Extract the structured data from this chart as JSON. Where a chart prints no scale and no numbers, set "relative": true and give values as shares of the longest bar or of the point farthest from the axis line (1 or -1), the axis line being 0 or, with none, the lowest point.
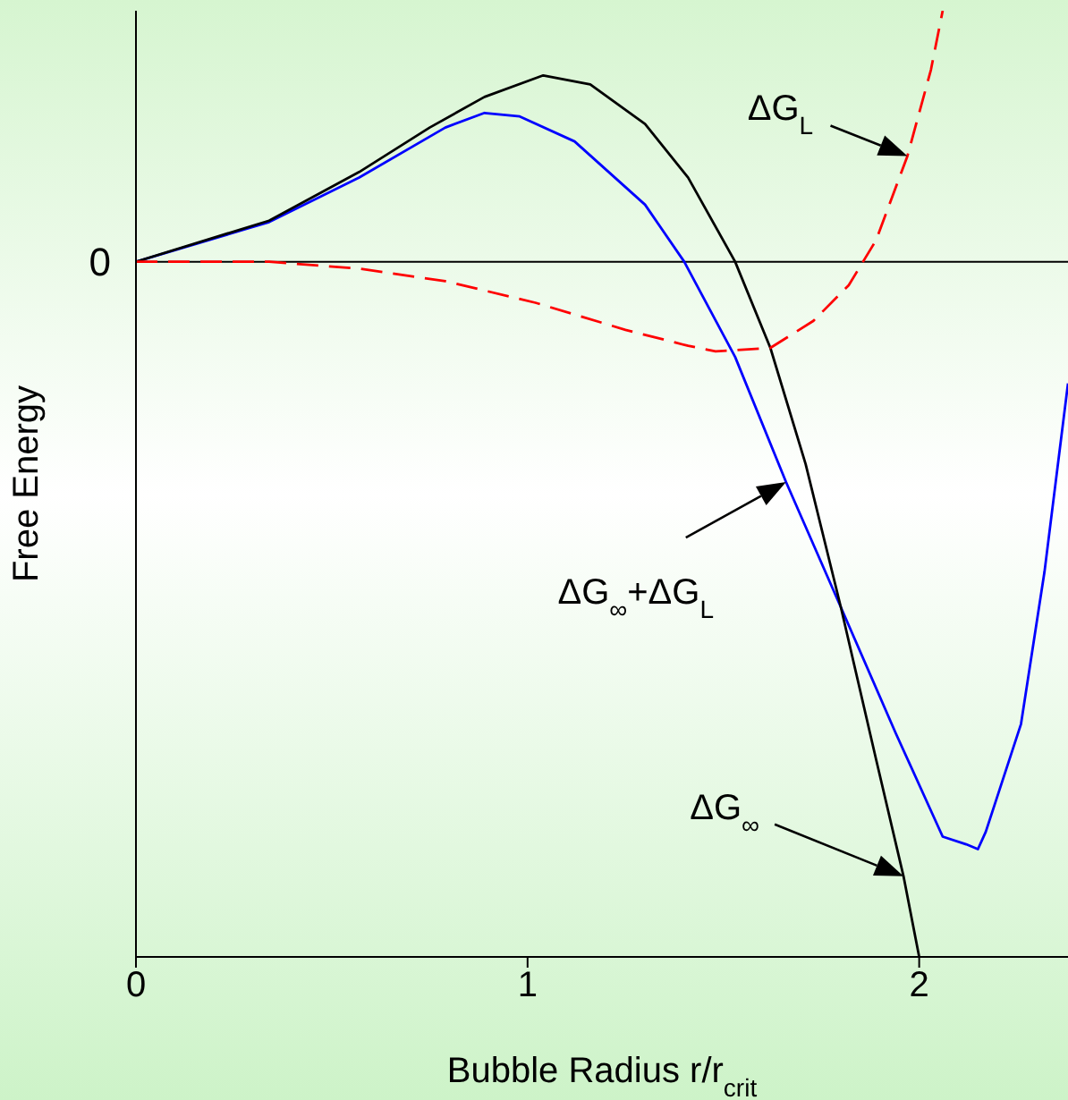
{
  "chart_data": {
    "type": "line",
    "xlabel": "Bubble Radius r/r$_{crit}$",
    "ylabel": "Free Energy",
    "relative": true,
    "xlim": [
      0,
      2.38
    ],
    "xticks": [
      0,
      1,
      2
    ],
    "marker": "none",
    "series": [
      {
        "color": "#0000ff",
        "line_style": "solid",
        "x": [
          0,
          0.34,
          0.57,
          0.79,
          0.89,
          0.98,
          1.12,
          1.3,
          1.4,
          1.53,
          1.66,
          1.8,
          1.94,
          2.06,
          2.12,
          2.15,
          2.17,
          2.26,
          2.32,
          2.38
        ],
        "values": [
          0,
          0.057,
          0.121,
          0.193,
          0.214,
          0.209,
          0.173,
          0.082,
          0,
          -0.137,
          -0.317,
          -0.497,
          -0.678,
          -0.827,
          -0.838,
          -0.845,
          -0.82,
          -0.665,
          -0.446,
          -0.175
        ]
      },
      {
        "color": "#000000",
        "line_style": "solid",
        "x": [
          0,
          0.34,
          0.57,
          0.75,
          0.89,
          1.04,
          1.16,
          1.3,
          1.41,
          1.53,
          1.62,
          1.71,
          1.8,
          1.89,
          1.96,
          2.0
        ],
        "values": [
          0,
          0.059,
          0.129,
          0.193,
          0.237,
          0.268,
          0.255,
          0.198,
          0.121,
          0,
          -0.124,
          -0.291,
          -0.497,
          -0.716,
          -0.884,
          -1
        ]
      },
      {
        "color": "#ff0000",
        "line_style": "dashed",
        "x": [
          0,
          0.34,
          0.57,
          0.79,
          1.02,
          1.25,
          1.41,
          1.48,
          1.62,
          1.73,
          1.82,
          1.89,
          1.97,
          2.03,
          2.06
        ],
        "values": [
          0,
          0,
          -0.01,
          -0.028,
          -0.059,
          -0.098,
          -0.121,
          -0.129,
          -0.124,
          -0.085,
          -0.034,
          0.031,
          0.152,
          0.276,
          0.361
        ]
      }
    ],
    "ref_lines": [
      {
        "axis": "y",
        "value": 0,
        "label": "0",
        "color": "#000000"
      }
    ],
    "annotations": [
      "ΔG$_{L}$",
      "ΔG$_{∞}$+ΔG$_{L}$",
      "ΔG$_{∞}$"
    ]
  }
}
